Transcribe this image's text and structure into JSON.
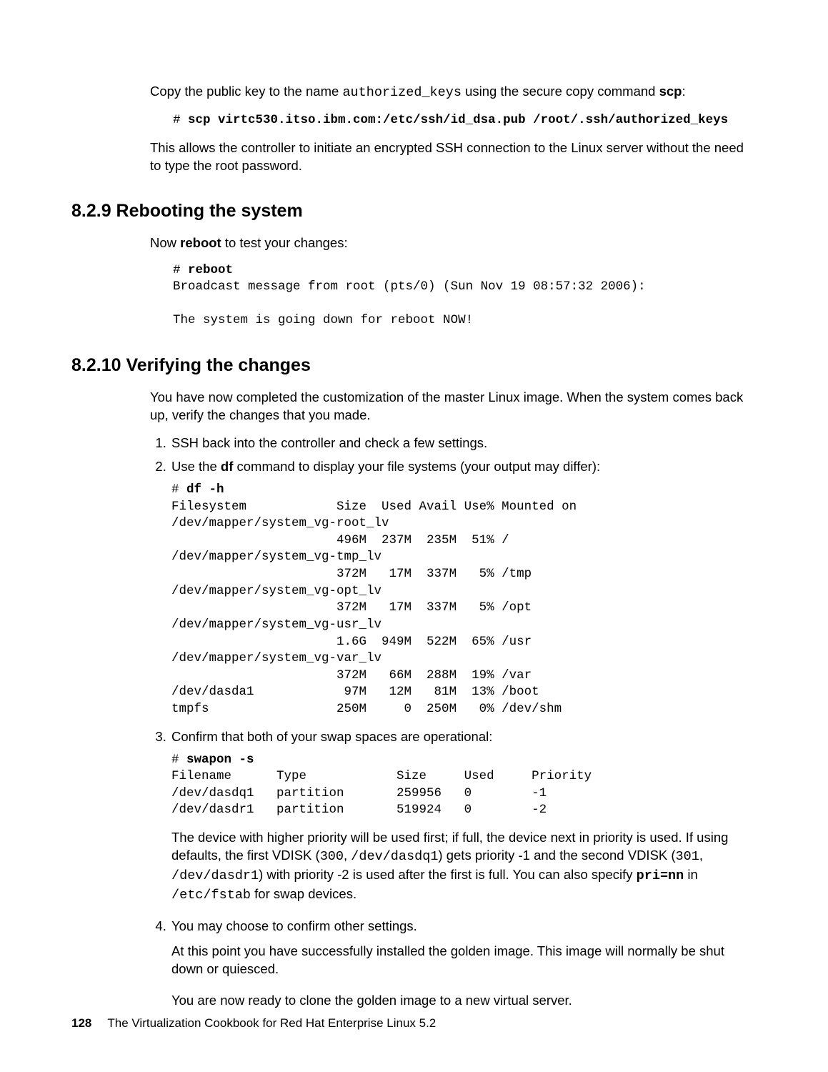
{
  "intro": {
    "p1_a": "Copy the public key to the name ",
    "p1_code": "authorized_keys",
    "p1_b": " using the secure copy command ",
    "p1_bold": "scp",
    "p1_c": ":",
    "cmd_prompt": "# ",
    "cmd_bold": "scp virtc530.itso.ibm.com:/etc/ssh/id_dsa.pub /root/.ssh/authorized_keys",
    "p2": "This allows the controller to initiate an encrypted SSH connection to the Linux server without the need to type the root password."
  },
  "s829": {
    "heading": "8.2.9  Rebooting the system",
    "p1_a": "Now ",
    "p1_bold": "reboot",
    "p1_b": " to test your changes:",
    "code": "# reboot\nBroadcast message from root (pts/0) (Sun Nov 19 08:57:32 2006):\n\nThe system is going down for reboot NOW!",
    "code_bold_cmd": "reboot"
  },
  "s8210": {
    "heading": "8.2.10  Verifying the changes",
    "p1": "You have now completed the customization of the master Linux image. When the system comes back up, verify the changes that you made.",
    "step1": "SSH back into the controller and check a few settings.",
    "step2_a": "Use the ",
    "step2_bold": "df",
    "step2_b": " command to display your file systems (your output may differ):",
    "df_output": "# df -h\nFilesystem            Size  Used Avail Use% Mounted on\n/dev/mapper/system_vg-root_lv\n                      496M  237M  235M  51% /\n/dev/mapper/system_vg-tmp_lv\n                      372M   17M  337M   5% /tmp\n/dev/mapper/system_vg-opt_lv\n                      372M   17M  337M   5% /opt\n/dev/mapper/system_vg-usr_lv\n                      1.6G  949M  522M  65% /usr\n/dev/mapper/system_vg-var_lv\n                      372M   66M  288M  19% /var\n/dev/dasda1            97M   12M   81M  13% /boot\ntmpfs                 250M     0  250M   0% /dev/shm",
    "df_bold_cmd": "df -h",
    "step3": "Confirm that both of your swap spaces are operational:",
    "swap_output": "# swapon -s\nFilename      Type            Size     Used     Priority\n/dev/dasdq1   partition       259956   0        -1\n/dev/dasdr1   partition       519924   0        -2",
    "swap_bold_cmd": "swapon -s",
    "p_swap_a": "The device with higher priority will be used first; if full, the device next in priority is used. If using defaults, the first VDISK (",
    "p_swap_c1": "300",
    "p_swap_b": ", ",
    "p_swap_c2": "/dev/dasdq1",
    "p_swap_c": ") gets priority -1 and the second VDISK (",
    "p_swap_c3": "301",
    "p_swap_d": ", ",
    "p_swap_c4": "/dev/dasdr1",
    "p_swap_e": ") with priority -2 is used after the first is full. You can also specify ",
    "p_swap_bold": "pri=nn",
    "p_swap_f": " in ",
    "p_swap_c5": "/etc/fstab",
    "p_swap_g": " for swap devices.",
    "step4": "You may choose to confirm other settings.",
    "p4a": "At this point you have successfully installed the golden image. This image will normally be shut down or quiesced.",
    "p4b": "You are now ready to clone the golden image to a new virtual server."
  },
  "footer": {
    "page": "128",
    "title": "The Virtualization Cookbook for Red Hat Enterprise Linux 5.2"
  }
}
